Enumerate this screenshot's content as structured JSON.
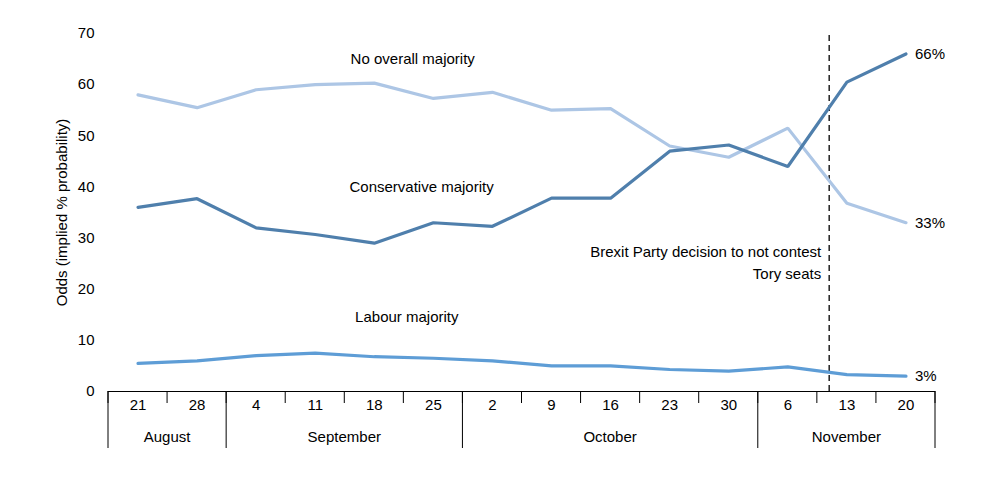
{
  "chart_data": {
    "type": "line",
    "y_label": "Odds (implied % probability)",
    "categories": [
      "21",
      "28",
      "4",
      "11",
      "18",
      "25",
      "2",
      "9",
      "16",
      "23",
      "30",
      "6",
      "13",
      "20"
    ],
    "x_groups": [
      {
        "label": "August",
        "count": 2
      },
      {
        "label": "September",
        "count": 4
      },
      {
        "label": "October",
        "count": 5
      },
      {
        "label": "November",
        "count": 3
      }
    ],
    "ylim": [
      0,
      70
    ],
    "yticks": [
      0,
      10,
      20,
      30,
      40,
      50,
      60,
      70
    ],
    "grid": false,
    "series": [
      {
        "name": "No overall majority",
        "color": "#adc6e5",
        "values": [
          58,
          55.5,
          59,
          60,
          60.3,
          57.3,
          58.5,
          55,
          55.3,
          48,
          45.8,
          51.5,
          36.8,
          33
        ],
        "end_label": "33%"
      },
      {
        "name": "Conservative majority",
        "color": "#4f7fac",
        "values": [
          36,
          37.7,
          32,
          30.7,
          29,
          33,
          32.3,
          37.8,
          37.8,
          47,
          48.2,
          44,
          60.5,
          66
        ],
        "end_label": "66%"
      },
      {
        "name": "Labour majority",
        "color": "#5e9dd6",
        "values": [
          5.5,
          6,
          7,
          7.5,
          6.8,
          6.5,
          6,
          5,
          5,
          4.3,
          4,
          4.8,
          3.3,
          3
        ],
        "end_label": "3%"
      }
    ],
    "annotation": {
      "text": "Brexit Party decision to not contest\nTory seats",
      "x": 11.7,
      "line_style": "dashed"
    }
  }
}
